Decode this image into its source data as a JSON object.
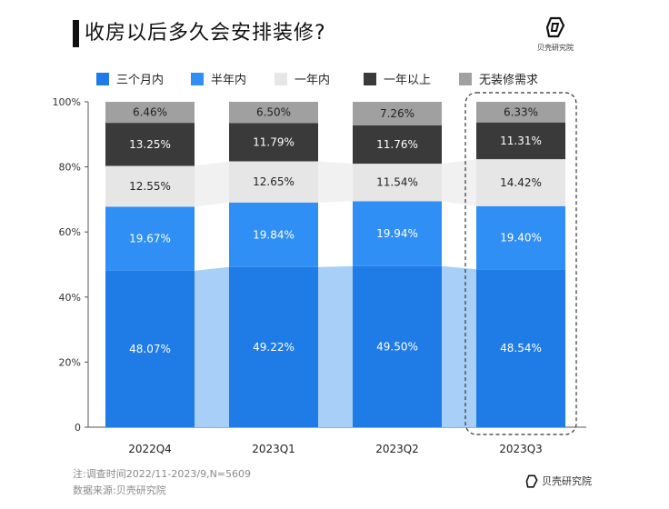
{
  "header": {
    "title": "收房以后多久会安排装修?",
    "brand": "贝壳研究院"
  },
  "chart_data": {
    "type": "bar",
    "stacked": true,
    "categories": [
      "2022Q4",
      "2023Q1",
      "2023Q2",
      "2023Q3"
    ],
    "series": [
      {
        "name": "三个月内",
        "color": "#1f7be6",
        "values": [
          48.07,
          49.22,
          49.5,
          48.54
        ],
        "labels": [
          "48.07%",
          "49.22%",
          "49.50%",
          "48.54%"
        ]
      },
      {
        "name": "半年内",
        "color": "#2f8ff5",
        "values": [
          19.67,
          19.84,
          19.94,
          19.4
        ],
        "labels": [
          "19.67%",
          "19.84%",
          "19.94%",
          "19.40%"
        ]
      },
      {
        "name": "一年内",
        "color": "#e6e6e6",
        "values": [
          12.55,
          12.65,
          11.54,
          14.42
        ],
        "labels": [
          "12.55%",
          "12.65%",
          "11.54%",
          "14.42%"
        ]
      },
      {
        "name": "一年以上",
        "color": "#3a3a3a",
        "values": [
          13.25,
          11.79,
          11.76,
          11.31
        ],
        "labels": [
          "13.25%",
          "11.79%",
          "11.76%",
          "11.31%"
        ]
      },
      {
        "name": "无装修需求",
        "color": "#a0a0a0",
        "values": [
          6.46,
          6.5,
          7.26,
          6.33
        ],
        "labels": [
          "6.46%",
          "6.50%",
          "7.26%",
          "6.33%"
        ]
      }
    ],
    "yticks": [
      "0",
      "20%",
      "40%",
      "60%",
      "80%",
      "100%"
    ],
    "ylim": [
      0,
      100
    ],
    "legend_position": "top",
    "highlight_category": "2023Q3"
  },
  "footer": {
    "note": "注:调查时间2022/11-2023/9,N=5609",
    "source": "数据来源:贝壳研究院",
    "brand": "贝壳研究院"
  },
  "colors": {
    "connector_blue": "#a8cff7",
    "connector_gray": "#f1f1f1",
    "label_dark": "#222222",
    "label_light": "#ffffff"
  }
}
